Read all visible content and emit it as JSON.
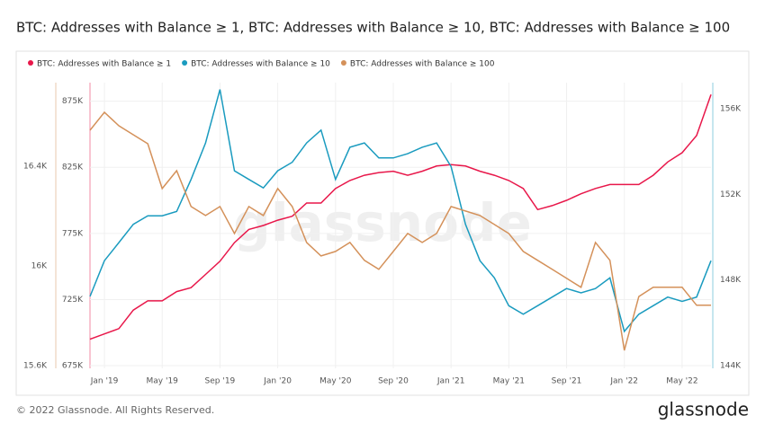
{
  "chart_data": {
    "type": "line",
    "title": "BTC: Addresses with Balance ≥ 1, BTC: Addresses with Balance ≥ 10, BTC: Addresses with Balance ≥ 100",
    "watermark": "glassnode",
    "footer": "© 2022 Glassnode. All Rights Reserved.",
    "brand": "glassnode",
    "categories": [
      null,
      "Jan '19",
      null,
      null,
      null,
      "May '19",
      null,
      null,
      null,
      "Sep '19",
      null,
      null,
      null,
      "Jan '20",
      null,
      null,
      null,
      "May '20",
      null,
      null,
      null,
      "Sep '20",
      null,
      null,
      null,
      "Jan '21",
      null,
      null,
      null,
      "May '21",
      null,
      null,
      null,
      "Sep '21",
      null,
      null,
      null,
      "Jan '22",
      null,
      null,
      null,
      "May '22",
      null,
      null
    ],
    "series": [
      {
        "name": "BTC: Addresses with Balance ≥ 1",
        "color": "#e8174a",
        "axis": "y",
        "values": [
          695000,
          699000,
          703000,
          717000,
          724000,
          724000,
          731000,
          734000,
          744000,
          754000,
          768000,
          778000,
          781000,
          785000,
          788000,
          798000,
          798000,
          809000,
          815000,
          819000,
          821000,
          822000,
          819000,
          822000,
          826000,
          827000,
          826000,
          822000,
          819000,
          815000,
          809000,
          793000,
          796000,
          800000,
          805000,
          809000,
          812000,
          812000,
          812000,
          819000,
          829000,
          836000,
          849000,
          880000
        ]
      },
      {
        "name": "BTC: Addresses with Balance ≥ 10",
        "color": "#1a9bbf",
        "axis": "y2",
        "values": [
          147230,
          148900,
          149750,
          150600,
          151000,
          151000,
          151200,
          152700,
          154400,
          156900,
          153100,
          152700,
          152300,
          153100,
          153500,
          154400,
          155000,
          152700,
          154200,
          154400,
          153700,
          153700,
          153900,
          154200,
          154400,
          153300,
          150600,
          148900,
          148100,
          146800,
          146400,
          146800,
          147200,
          147600,
          147400,
          147600,
          148100,
          145600,
          146400,
          146800,
          147200,
          147000,
          147200,
          148900
        ]
      },
      {
        "name": "BTC: Addresses with Balance ≥ 100",
        "color": "#d4915a",
        "axis": "y3",
        "values": [
          16544,
          16616,
          16562,
          16526,
          16490,
          16310,
          16382,
          16238,
          16202,
          16238,
          16130,
          16238,
          16202,
          16310,
          16238,
          16094,
          16040,
          16058,
          16094,
          16022,
          15986,
          16058,
          16130,
          16094,
          16130,
          16238,
          16220,
          16202,
          16166,
          16130,
          16058,
          16022,
          15986,
          15950,
          15914,
          16094,
          16022,
          15661,
          15877,
          15914,
          15914,
          15914,
          15842,
          15842
        ]
      }
    ],
    "ylim": [
      673000,
      889000
    ],
    "yticks": [
      {
        "value": 675000,
        "label": "675K"
      },
      {
        "value": 725000,
        "label": "725K"
      },
      {
        "value": 775000,
        "label": "775K"
      },
      {
        "value": 825000,
        "label": "825K"
      },
      {
        "value": 875000,
        "label": "875K"
      }
    ],
    "y2lim": [
      143874,
      157217
    ],
    "y2ticks": [
      {
        "value": 144000,
        "label": "144K"
      },
      {
        "value": 148000,
        "label": "148K"
      },
      {
        "value": 152000,
        "label": "152K"
      },
      {
        "value": 156000,
        "label": "156K"
      }
    ],
    "y3lim": [
      15589,
      16735
    ],
    "y3ticks": [
      {
        "value": 15600,
        "label": "15.6K"
      },
      {
        "value": 16000,
        "label": "16K"
      },
      {
        "value": 16400,
        "label": "16.4K"
      }
    ],
    "grid": true
  }
}
